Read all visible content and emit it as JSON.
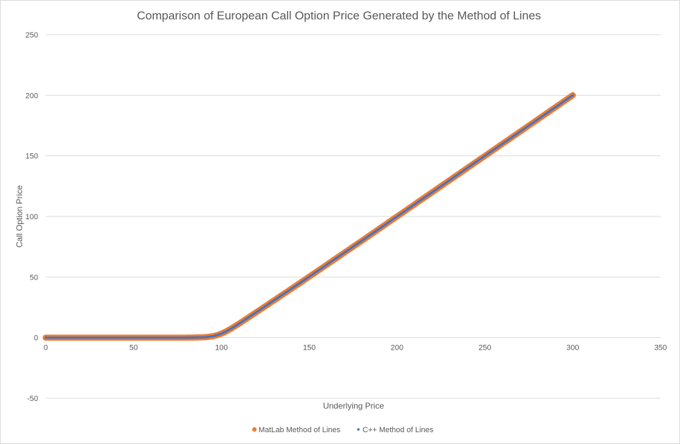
{
  "chart_data": {
    "type": "scatter",
    "title": "Comparison of European Call Option Price Generated by the Method of Lines",
    "xlabel": "Underlying Price",
    "ylabel": "Call Option Price",
    "xlim": [
      0,
      350
    ],
    "ylim": [
      -50,
      250
    ],
    "x_ticks": [
      0,
      50,
      100,
      150,
      200,
      250,
      300,
      350
    ],
    "y_ticks": [
      -50,
      0,
      50,
      100,
      150,
      200,
      250
    ],
    "grid": "horizontal",
    "legend_position": "bottom",
    "series": [
      {
        "name": "MatLab Method of Lines",
        "color": "#ed7d31",
        "marker": "circle",
        "x": [
          0,
          10,
          20,
          30,
          40,
          50,
          60,
          70,
          80,
          85,
          90,
          92.5,
          95,
          97.5,
          100,
          102.5,
          105,
          107.5,
          110,
          115,
          120,
          125,
          130,
          140,
          150,
          160,
          170,
          180,
          190,
          200,
          210,
          220,
          230,
          240,
          250,
          260,
          270,
          280,
          290,
          300
        ],
        "y": [
          0,
          0,
          0,
          0,
          0,
          0,
          0,
          0,
          0,
          0.1,
          0.3,
          0.6,
          1.1,
          2.0,
          3.3,
          5.0,
          7.0,
          9.2,
          11.5,
          16.3,
          21.1,
          25.9,
          30.8,
          40.5,
          50.3,
          60.2,
          70.1,
          80.0,
          90.0,
          100.0,
          110.0,
          120.0,
          130.0,
          140.0,
          150.0,
          160.0,
          170.0,
          180.0,
          190.0,
          200.0
        ]
      },
      {
        "name": "C++ Method of Lines",
        "color": "#4472c4",
        "marker": "circle",
        "x": [
          0,
          10,
          20,
          30,
          40,
          50,
          60,
          70,
          80,
          85,
          90,
          92.5,
          95,
          97.5,
          100,
          102.5,
          105,
          107.5,
          110,
          115,
          120,
          125,
          130,
          140,
          150,
          160,
          170,
          180,
          190,
          200,
          210,
          220,
          230,
          240,
          250,
          260,
          270,
          280,
          290,
          300
        ],
        "y": [
          0,
          0,
          0,
          0,
          0,
          0,
          0,
          0,
          0,
          0.1,
          0.3,
          0.6,
          1.1,
          2.0,
          3.3,
          5.0,
          7.0,
          9.2,
          11.5,
          16.3,
          21.1,
          25.9,
          30.8,
          40.5,
          50.3,
          60.2,
          70.1,
          80.0,
          90.0,
          100.0,
          110.0,
          120.0,
          130.0,
          140.0,
          150.0,
          160.0,
          170.0,
          180.0,
          190.0,
          200.0
        ]
      }
    ]
  }
}
